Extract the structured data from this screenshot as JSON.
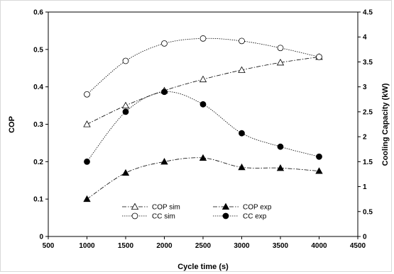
{
  "chart_data": {
    "type": "line",
    "title": "",
    "xlabel": "Cycle time (s)",
    "ylabel": "COP",
    "y2label": "Cooling Capacity (kW)",
    "xlim": [
      500,
      4500
    ],
    "ylim": [
      0,
      0.6
    ],
    "y2lim": [
      0,
      4.5
    ],
    "xticks": [
      "500",
      "1000",
      "1500",
      "2000",
      "2500",
      "3000",
      "3500",
      "4000",
      "4500"
    ],
    "yticks": [
      "0",
      "0.1",
      "0.2",
      "0.3",
      "0.4",
      "0.5",
      "0.6"
    ],
    "y2ticks": [
      "0",
      "0.5",
      "1",
      "1.5",
      "2",
      "2.5",
      "3",
      "3.5",
      "4",
      "4.5"
    ],
    "grid": false,
    "legend_position": "bottom-center",
    "series": [
      {
        "name": "COP sim",
        "axis": "left",
        "marker": "triangle-open",
        "line": "dash-dot",
        "x": [
          1000,
          1500,
          2000,
          2500,
          3000,
          3500,
          4000
        ],
        "y": [
          0.3,
          0.35,
          0.39,
          0.42,
          0.445,
          0.465,
          0.48
        ]
      },
      {
        "name": "COP exp",
        "axis": "left",
        "marker": "triangle-filled",
        "line": "dash-dot",
        "x": [
          1000,
          1500,
          2000,
          2500,
          3000,
          3500,
          4000
        ],
        "y": [
          0.1,
          0.17,
          0.2,
          0.21,
          0.185,
          0.183,
          0.175
        ]
      },
      {
        "name": "CC sim",
        "axis": "right",
        "marker": "circle-open",
        "line": "dotted",
        "x": [
          1000,
          1500,
          2000,
          2500,
          3000,
          3500,
          4000
        ],
        "y": [
          2.85,
          3.52,
          3.87,
          3.97,
          3.92,
          3.78,
          3.6
        ]
      },
      {
        "name": "CC exp",
        "axis": "right",
        "marker": "circle-filled",
        "line": "dotted",
        "x": [
          1000,
          1500,
          2000,
          2500,
          3000,
          3500,
          4000
        ],
        "y": [
          1.5,
          2.5,
          2.9,
          2.65,
          2.07,
          1.8,
          1.6
        ]
      }
    ]
  }
}
